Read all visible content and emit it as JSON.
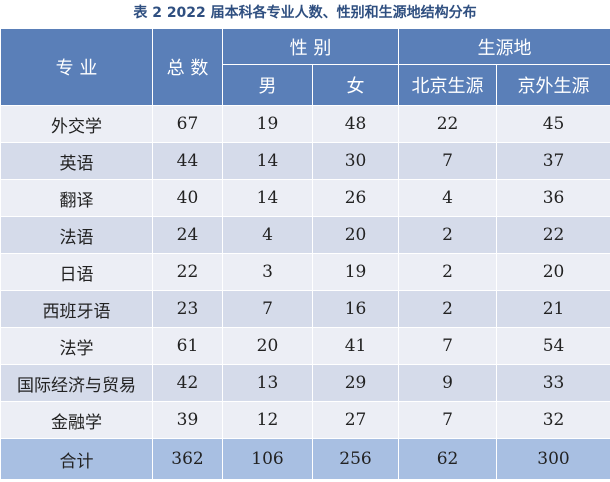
{
  "caption": "表 2  2022 届本科各专业人数、性别和生源地结构分布",
  "header": {
    "major": "专 业",
    "total": "总 数",
    "gender": "性 别",
    "male": "男",
    "female": "女",
    "origin": "生源地",
    "beijing": "北京生源",
    "outside": "京外生源"
  },
  "rows": [
    {
      "major": "外交学",
      "total": "67",
      "male": "19",
      "female": "48",
      "beijing": "22",
      "outside": "45"
    },
    {
      "major": "英语",
      "total": "44",
      "male": "14",
      "female": "30",
      "beijing": "7",
      "outside": "37"
    },
    {
      "major": "翻译",
      "total": "40",
      "male": "14",
      "female": "26",
      "beijing": "4",
      "outside": "36"
    },
    {
      "major": "法语",
      "total": "24",
      "male": "4",
      "female": "20",
      "beijing": "2",
      "outside": "22"
    },
    {
      "major": "日语",
      "total": "22",
      "male": "3",
      "female": "19",
      "beijing": "2",
      "outside": "20"
    },
    {
      "major": "西班牙语",
      "total": "23",
      "male": "7",
      "female": "16",
      "beijing": "2",
      "outside": "21"
    },
    {
      "major": "法学",
      "total": "61",
      "male": "20",
      "female": "41",
      "beijing": "7",
      "outside": "54"
    },
    {
      "major": "国际经济与贸易",
      "total": "42",
      "male": "13",
      "female": "29",
      "beijing": "9",
      "outside": "33"
    },
    {
      "major": "金融学",
      "total": "39",
      "male": "12",
      "female": "27",
      "beijing": "7",
      "outside": "32"
    }
  ],
  "totals": {
    "major": "合计",
    "total": "362",
    "male": "106",
    "female": "256",
    "beijing": "62",
    "outside": "300"
  }
}
